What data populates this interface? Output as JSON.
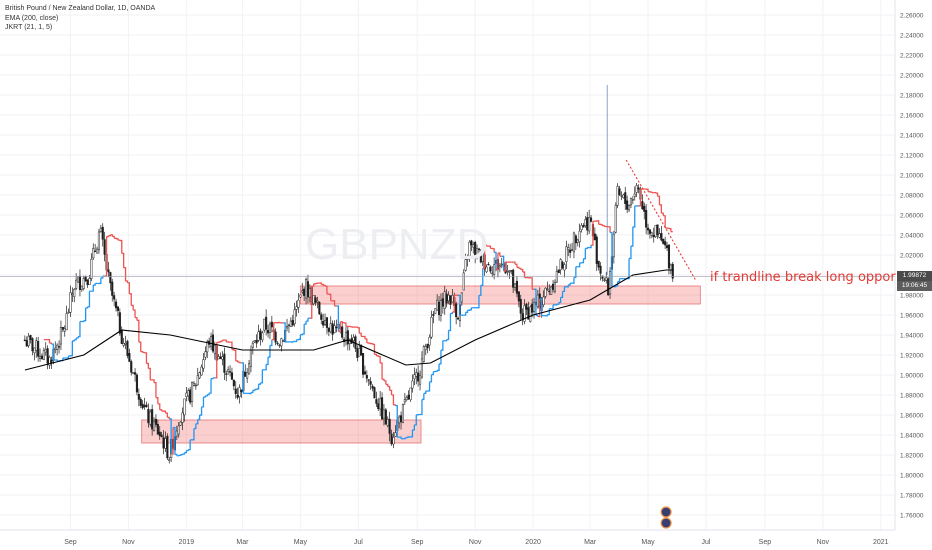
{
  "legend": {
    "symbol_line": "British Pound / New Zealand Dollar, 1D, OANDA",
    "indicator1": "EMA (200, close)",
    "indicator2": "JKRT (21, 1, 5)"
  },
  "watermark": "GBPNZD",
  "annotation": "if trandline break  long oppor",
  "last_price_label": "1.99872",
  "countdown_label": "19:06:45",
  "colors": {
    "candle": "#1e1e1e",
    "ema": "#000000",
    "jkrt_up": "#2196f3",
    "jkrt_down": "#ef5350",
    "zone_fill": "rgba(239,83,80,0.28)",
    "zone_stroke": "#e57373",
    "trendline": "#e53935"
  },
  "chart_data": {
    "type": "candlestick",
    "title": "British Pound / New Zealand Dollar, 1D, OANDA",
    "ylim": [
      1.745,
      2.275
    ],
    "y_ticks": [
      "1.76000",
      "1.78000",
      "1.80000",
      "1.82000",
      "1.84000",
      "1.86000",
      "1.88000",
      "1.90000",
      "1.92000",
      "1.94000",
      "1.96000",
      "1.98000",
      "2.00000",
      "2.02000",
      "2.04000",
      "2.06000",
      "2.08000",
      "2.10000",
      "2.12000",
      "2.14000",
      "2.16000",
      "2.18000",
      "2.20000",
      "2.22000",
      "2.24000",
      "2.26000"
    ],
    "x_ticks": [
      "Sep",
      "Nov",
      "2019",
      "Mar",
      "May",
      "Jul",
      "Sep",
      "Nov",
      "2020",
      "Mar",
      "May",
      "Jul",
      "Sep",
      "Nov",
      "2021"
    ],
    "price_path": [
      [
        "2018-07-15",
        1.935
      ],
      [
        "2018-08-10",
        1.915
      ],
      [
        "2018-08-25",
        1.945
      ],
      [
        "2018-09-05",
        1.99
      ],
      [
        "2018-09-20",
        2.0
      ],
      [
        "2018-10-02",
        2.045
      ],
      [
        "2018-10-12",
        1.99
      ],
      [
        "2018-10-25",
        1.94
      ],
      [
        "2018-11-10",
        1.89
      ],
      [
        "2018-11-20",
        1.86
      ],
      [
        "2018-12-05",
        1.84
      ],
      [
        "2018-12-14",
        1.82
      ],
      [
        "2018-12-25",
        1.86
      ],
      [
        "2019-01-10",
        1.89
      ],
      [
        "2019-01-25",
        1.935
      ],
      [
        "2019-02-10",
        1.91
      ],
      [
        "2019-02-25",
        1.88
      ],
      [
        "2019-03-10",
        1.925
      ],
      [
        "2019-03-25",
        1.95
      ],
      [
        "2019-04-10",
        1.935
      ],
      [
        "2019-04-25",
        1.96
      ],
      [
        "2019-05-06",
        1.99
      ],
      [
        "2019-05-20",
        1.965
      ],
      [
        "2019-06-05",
        1.945
      ],
      [
        "2019-06-25",
        1.935
      ],
      [
        "2019-07-10",
        1.9
      ],
      [
        "2019-07-25",
        1.865
      ],
      [
        "2019-08-05",
        1.84
      ],
      [
        "2019-08-20",
        1.87
      ],
      [
        "2019-09-05",
        1.91
      ],
      [
        "2019-09-20",
        1.965
      ],
      [
        "2019-10-05",
        1.98
      ],
      [
        "2019-10-15",
        1.96
      ],
      [
        "2019-10-25",
        2.03
      ],
      [
        "2019-11-15",
        2.01
      ],
      [
        "2019-12-05",
        2.01
      ],
      [
        "2019-12-20",
        1.96
      ],
      [
        "2020-01-05",
        1.97
      ],
      [
        "2020-01-20",
        1.99
      ],
      [
        "2020-02-05",
        2.02
      ],
      [
        "2020-02-20",
        2.05
      ],
      [
        "2020-03-01",
        2.055
      ],
      [
        "2020-03-10",
        2.01
      ],
      [
        "2020-03-20",
        1.985
      ],
      [
        "2020-03-30",
        2.08
      ],
      [
        "2020-04-10",
        2.07
      ],
      [
        "2020-04-20",
        2.09
      ],
      [
        "2020-04-30",
        2.05
      ],
      [
        "2020-05-10",
        2.04
      ],
      [
        "2020-05-20",
        2.025
      ],
      [
        "2020-05-28",
        2.0
      ]
    ],
    "spike": {
      "date": "2020-03-19",
      "high": 2.19
    },
    "ema_200": [
      [
        "2018-07-15",
        1.905
      ],
      [
        "2018-09-15",
        1.92
      ],
      [
        "2018-10-25",
        1.945
      ],
      [
        "2018-12-15",
        1.94
      ],
      [
        "2019-03-01",
        1.925
      ],
      [
        "2019-05-15",
        1.925
      ],
      [
        "2019-06-20",
        1.935
      ],
      [
        "2019-08-20",
        1.91
      ],
      [
        "2019-09-15",
        1.912
      ],
      [
        "2019-11-01",
        1.935
      ],
      [
        "2020-01-01",
        1.96
      ],
      [
        "2020-03-01",
        1.975
      ],
      [
        "2020-04-15",
        2.0
      ],
      [
        "2020-05-20",
        2.005
      ],
      [
        "2020-05-28",
        2.005
      ]
    ],
    "zones": [
      {
        "x1": "2018-11-15",
        "x2": "2019-09-05",
        "y1": 1.832,
        "y2": 1.855
      },
      {
        "x1": "2019-05-01",
        "x2": "2020-06-25",
        "y1": 1.971,
        "y2": 1.989
      }
    ],
    "trendline": {
      "x1": "2020-04-08",
      "y1": 2.115,
      "x2": "2020-06-20",
      "y2": 1.995
    },
    "last_price": 1.99872,
    "last_date": "2020-05-28"
  }
}
